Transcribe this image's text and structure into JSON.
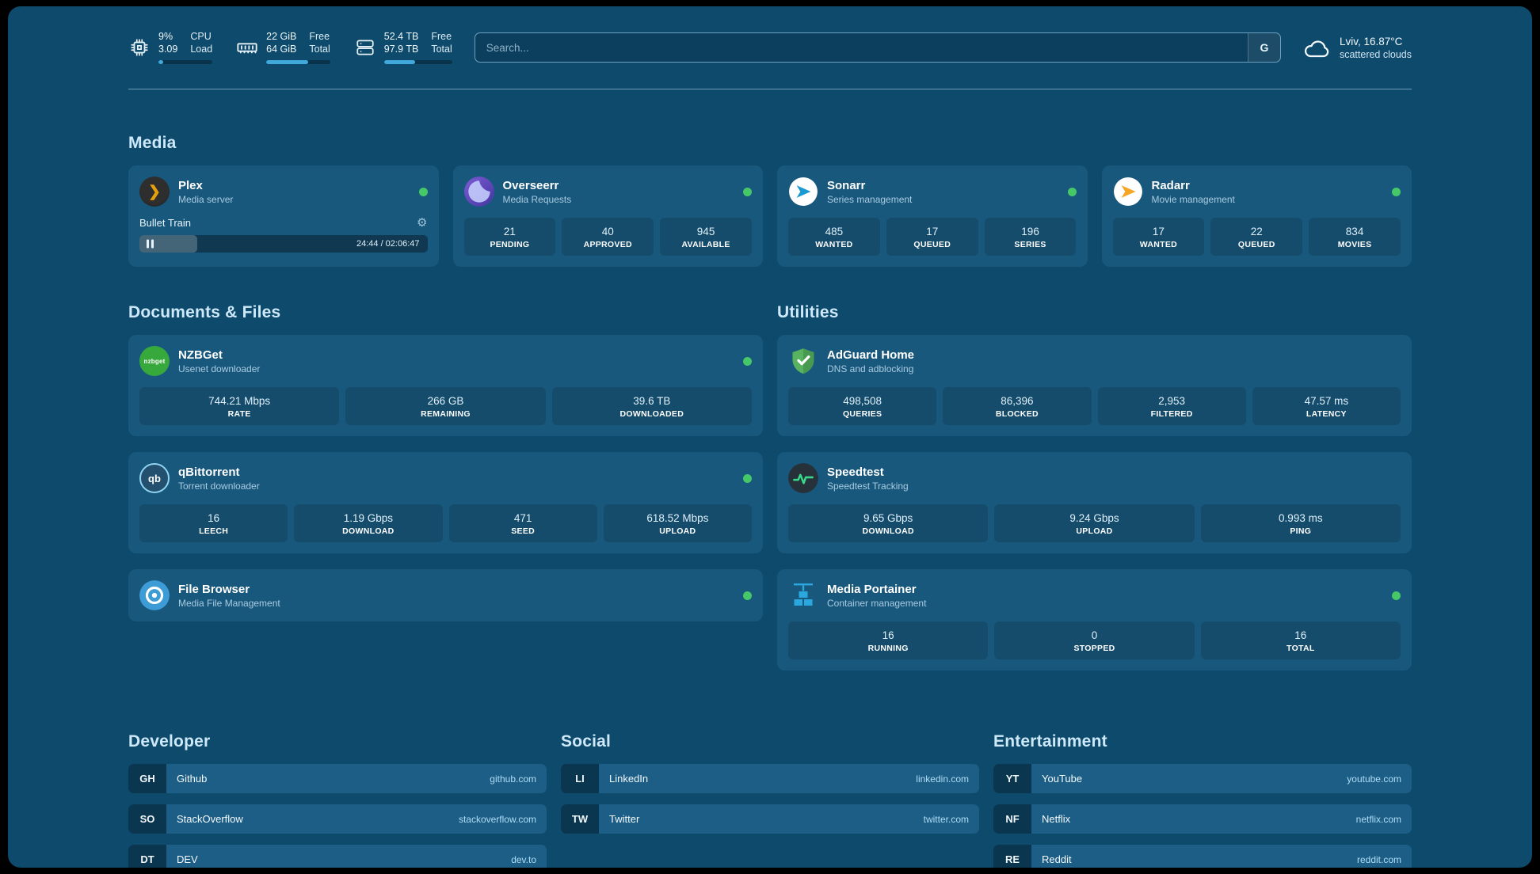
{
  "colors": {
    "background": "#0E4A6B",
    "card": "#19587D",
    "accent": "#41A8DC",
    "status_online": "#46C768",
    "section_header": "#CDE9FA"
  },
  "topbar": {
    "cpu": {
      "usage": "9%",
      "load": "3.09",
      "labels": [
        "CPU",
        "Load"
      ],
      "bar_percent": 9
    },
    "memory": {
      "free": "22 GiB",
      "total": "64 GiB",
      "labels": [
        "Free",
        "Total"
      ],
      "bar_percent": 66
    },
    "storage": {
      "free": "52.4 TB",
      "total": "97.9 TB",
      "labels": [
        "Free",
        "Total"
      ],
      "bar_percent": 46
    },
    "search": {
      "placeholder": "Search...",
      "engine_label": "G"
    },
    "weather": {
      "location": "Lviv, 16.87°C",
      "condition": "scattered clouds"
    }
  },
  "sections": {
    "media": {
      "header": "Media",
      "plex": {
        "title": "Plex",
        "subtitle": "Media server",
        "now_playing": "Bullet Train",
        "time": "24:44 / 02:06:47",
        "progress_percent": 20
      },
      "overseerr": {
        "title": "Overseerr",
        "subtitle": "Media Requests",
        "stats": [
          {
            "value": "21",
            "label": "PENDING"
          },
          {
            "value": "40",
            "label": "APPROVED"
          },
          {
            "value": "945",
            "label": "AVAILABLE"
          }
        ]
      },
      "sonarr": {
        "title": "Sonarr",
        "subtitle": "Series management",
        "stats": [
          {
            "value": "485",
            "label": "WANTED"
          },
          {
            "value": "17",
            "label": "QUEUED"
          },
          {
            "value": "196",
            "label": "SERIES"
          }
        ]
      },
      "radarr": {
        "title": "Radarr",
        "subtitle": "Movie management",
        "stats": [
          {
            "value": "17",
            "label": "WANTED"
          },
          {
            "value": "22",
            "label": "QUEUED"
          },
          {
            "value": "834",
            "label": "MOVIES"
          }
        ]
      }
    },
    "documents": {
      "header": "Documents & Files",
      "nzbget": {
        "title": "NZBGet",
        "subtitle": "Usenet downloader",
        "icon_label": "nzbget",
        "stats": [
          {
            "value": "744.21 Mbps",
            "label": "RATE"
          },
          {
            "value": "266 GB",
            "label": "REMAINING"
          },
          {
            "value": "39.6 TB",
            "label": "DOWNLOADED"
          }
        ]
      },
      "qbittorrent": {
        "title": "qBittorrent",
        "subtitle": "Torrent downloader",
        "icon_label": "qb",
        "stats": [
          {
            "value": "16",
            "label": "LEECH"
          },
          {
            "value": "1.19 Gbps",
            "label": "DOWNLOAD"
          },
          {
            "value": "471",
            "label": "SEED"
          },
          {
            "value": "618.52 Mbps",
            "label": "UPLOAD"
          }
        ]
      },
      "filebrowser": {
        "title": "File Browser",
        "subtitle": "Media File Management"
      }
    },
    "utilities": {
      "header": "Utilities",
      "adguard": {
        "title": "AdGuard Home",
        "subtitle": "DNS and adblocking",
        "stats": [
          {
            "value": "498,508",
            "label": "QUERIES"
          },
          {
            "value": "86,396",
            "label": "BLOCKED"
          },
          {
            "value": "2,953",
            "label": "FILTERED"
          },
          {
            "value": "47.57 ms",
            "label": "LATENCY"
          }
        ]
      },
      "speedtest": {
        "title": "Speedtest",
        "subtitle": "Speedtest Tracking",
        "stats": [
          {
            "value": "9.65 Gbps",
            "label": "DOWNLOAD"
          },
          {
            "value": "9.24 Gbps",
            "label": "UPLOAD"
          },
          {
            "value": "0.993 ms",
            "label": "PING"
          }
        ]
      },
      "portainer": {
        "title": "Media Portainer",
        "subtitle": "Container management",
        "stats": [
          {
            "value": "16",
            "label": "RUNNING"
          },
          {
            "value": "0",
            "label": "STOPPED"
          },
          {
            "value": "16",
            "label": "TOTAL"
          }
        ]
      }
    },
    "bookmarks": {
      "developer": {
        "header": "Developer",
        "items": [
          {
            "abbr": "GH",
            "name": "Github",
            "url": "github.com"
          },
          {
            "abbr": "SO",
            "name": "StackOverflow",
            "url": "stackoverflow.com"
          },
          {
            "abbr": "DT",
            "name": "DEV",
            "url": "dev.to"
          }
        ]
      },
      "social": {
        "header": "Social",
        "items": [
          {
            "abbr": "LI",
            "name": "LinkedIn",
            "url": "linkedin.com"
          },
          {
            "abbr": "TW",
            "name": "Twitter",
            "url": "twitter.com"
          }
        ]
      },
      "entertainment": {
        "header": "Entertainment",
        "items": [
          {
            "abbr": "YT",
            "name": "YouTube",
            "url": "youtube.com"
          },
          {
            "abbr": "NF",
            "name": "Netflix",
            "url": "netflix.com"
          },
          {
            "abbr": "RE",
            "name": "Reddit",
            "url": "reddit.com"
          }
        ]
      }
    }
  }
}
